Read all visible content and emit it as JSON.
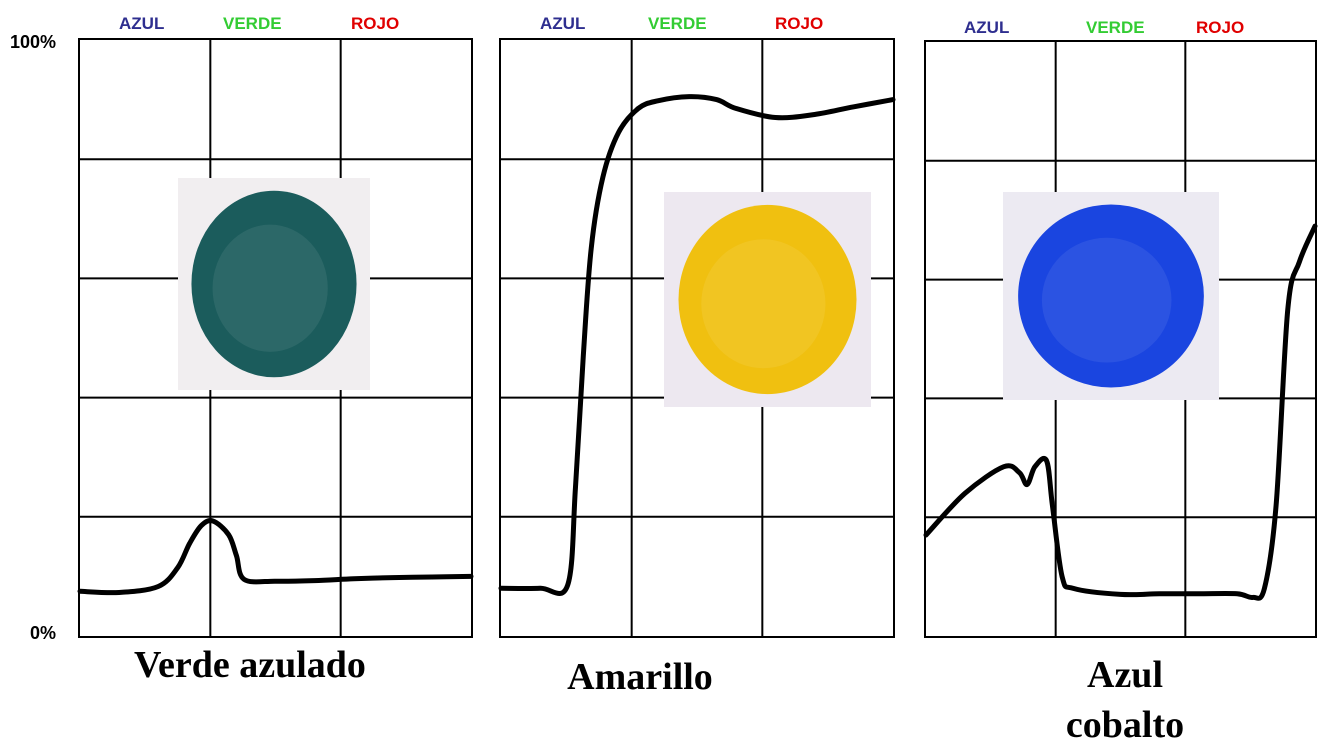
{
  "bands": {
    "blue": {
      "label": "AZUL",
      "color": "#2e2e8f"
    },
    "green": {
      "label": "VERDE",
      "color": "#33cc33"
    },
    "red": {
      "label": "ROJO",
      "color": "#e00000"
    }
  },
  "y_axis": {
    "top_label": "100%",
    "bottom_label": "0%"
  },
  "chart_data": [
    {
      "type": "line",
      "title": "Verde azulado",
      "swatch": {
        "color": "#1b5c5c",
        "background": "#f1eef0"
      },
      "ylim": [
        0,
        100
      ],
      "x": [
        0,
        0.1,
        0.2,
        0.25,
        0.28,
        0.31,
        0.34,
        0.38,
        0.4,
        0.42,
        0.5,
        0.6,
        0.7,
        0.8,
        0.9,
        1.0
      ],
      "values": [
        7.5,
        7.3,
        8.3,
        11.5,
        15.5,
        18.5,
        19.3,
        17,
        13.5,
        9.5,
        9.2,
        9.3,
        9.6,
        9.8,
        9.9,
        10
      ]
    },
    {
      "type": "line",
      "title": "Amarillo",
      "swatch": {
        "color": "#f0c010",
        "background": "#ede8f0"
      },
      "ylim": [
        0,
        100
      ],
      "x": [
        0,
        0.1,
        0.17,
        0.19,
        0.21,
        0.23,
        0.26,
        0.3,
        0.35,
        0.4,
        0.48,
        0.55,
        0.6,
        0.7,
        0.8,
        0.9,
        1.0
      ],
      "values": [
        8,
        8,
        8.5,
        25,
        47,
        65,
        77,
        84.5,
        88.5,
        89.8,
        90.5,
        90,
        88.5,
        87,
        87.5,
        88.8,
        90
      ]
    },
    {
      "type": "line",
      "title": "Azul\ncobalto",
      "swatch": {
        "color": "#1a45e0",
        "background": "#eceaf2"
      },
      "ylim": [
        0,
        100
      ],
      "x": [
        0,
        0.1,
        0.2,
        0.24,
        0.26,
        0.28,
        0.31,
        0.325,
        0.35,
        0.38,
        0.5,
        0.6,
        0.7,
        0.8,
        0.84,
        0.87,
        0.9,
        0.93,
        0.96,
        1.0
      ],
      "values": [
        17,
        24,
        28.5,
        27.5,
        25.5,
        28.5,
        29.5,
        22,
        10,
        8,
        7,
        7.1,
        7.1,
        7.1,
        6.5,
        8,
        22,
        55,
        63,
        69
      ]
    }
  ]
}
